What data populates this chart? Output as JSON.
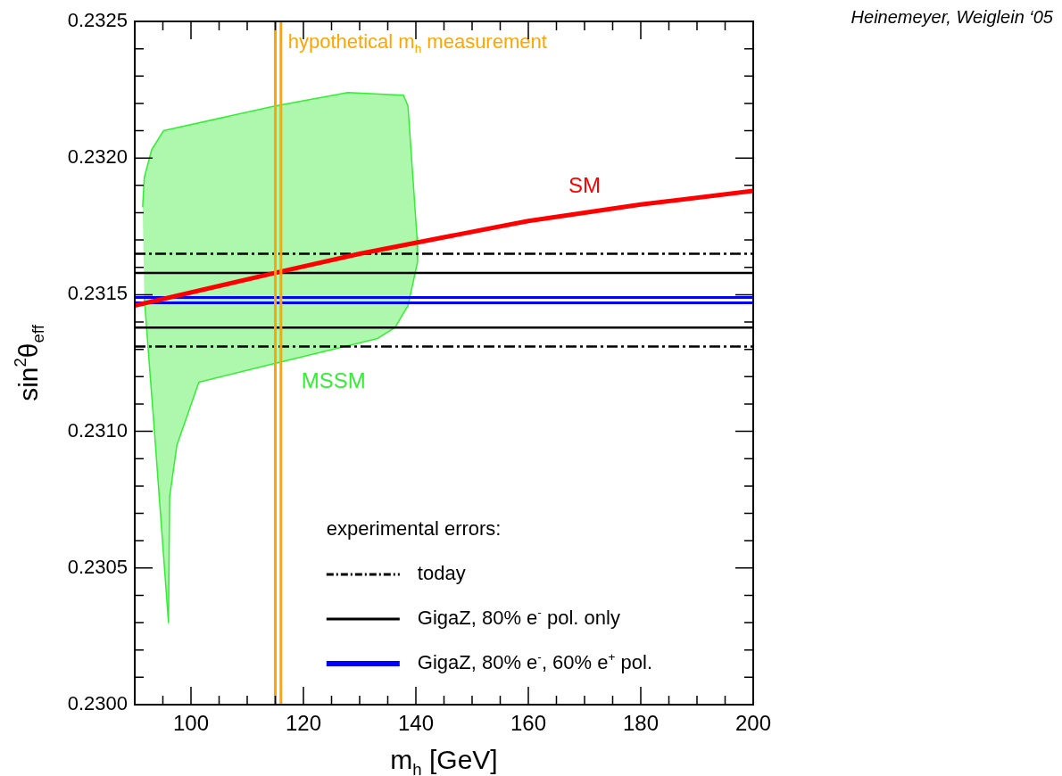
{
  "chart_data": {
    "type": "line",
    "xlabel": "m$_{h}$ [GeV]",
    "ylabel": "sin$^{2}$θ$_{eff}$",
    "xlim": [
      90,
      200
    ],
    "ylim": [
      0.23,
      0.2325
    ],
    "xticks": [
      {
        "value": 95,
        "label": null
      },
      100,
      {
        "value": 105,
        "label": null
      },
      {
        "value": 110,
        "label": null
      },
      {
        "value": 115,
        "label": null
      },
      120,
      {
        "value": 125,
        "label": null
      },
      {
        "value": 130,
        "label": null
      },
      {
        "value": 135,
        "label": null
      },
      140,
      {
        "value": 145,
        "label": null
      },
      {
        "value": 150,
        "label": null
      },
      {
        "value": 155,
        "label": null
      },
      160,
      {
        "value": 165,
        "label": null
      },
      {
        "value": 170,
        "label": null
      },
      {
        "value": 175,
        "label": null
      },
      180,
      {
        "value": 185,
        "label": null
      },
      {
        "value": 190,
        "label": null
      },
      {
        "value": 195,
        "label": null
      },
      200
    ],
    "yticks": [
      {
        "value": 0.23,
        "label": "0.2300"
      },
      {
        "value": 0.2301,
        "label": null
      },
      {
        "value": 0.2302,
        "label": null
      },
      {
        "value": 0.2303,
        "label": null
      },
      {
        "value": 0.2304,
        "label": null
      },
      {
        "value": 0.2305,
        "label": "0.2305"
      },
      {
        "value": 0.2306,
        "label": null
      },
      {
        "value": 0.2307,
        "label": null
      },
      {
        "value": 0.2308,
        "label": null
      },
      {
        "value": 0.2309,
        "label": null
      },
      {
        "value": 0.231,
        "label": "0.2310"
      },
      {
        "value": 0.2311,
        "label": null
      },
      {
        "value": 0.2312,
        "label": null
      },
      {
        "value": 0.2313,
        "label": null
      },
      {
        "value": 0.2314,
        "label": null
      },
      {
        "value": 0.2315,
        "label": "0.2315"
      },
      {
        "value": 0.2316,
        "label": null
      },
      {
        "value": 0.2317,
        "label": null
      },
      {
        "value": 0.2318,
        "label": null
      },
      {
        "value": 0.2319,
        "label": null
      },
      {
        "value": 0.232,
        "label": "0.2320"
      },
      {
        "value": 0.2321,
        "label": null
      },
      {
        "value": 0.2322,
        "label": null
      },
      {
        "value": 0.2323,
        "label": null
      },
      {
        "value": 0.2324,
        "label": null
      },
      {
        "value": 0.2325,
        "label": "0.2325"
      }
    ],
    "grid": false,
    "legend": "bottom right",
    "legend_title": "experimental errors:",
    "marker": "none",
    "series": [
      {
        "type": "area",
        "name": "MSSM",
        "color": "#33ee33",
        "x": [
          91.4,
          91.7,
          93.0,
          95.1,
          114.8,
          127.9,
          137.8,
          138.6,
          140.2,
          140.3,
          138.6,
          136.3,
          133.2,
          115.2,
          101.4,
          97.5,
          96.2,
          96.0,
          93.5,
          92.5,
          91.7
        ],
        "values": [
          0.23182,
          0.23193,
          0.23203,
          0.2321,
          0.23219,
          0.23224,
          0.23223,
          0.23219,
          0.23171,
          0.23162,
          0.23146,
          0.23138,
          0.23134,
          0.23125,
          0.23118,
          0.23095,
          0.23076,
          0.2303,
          0.231,
          0.23127,
          0.23149
        ]
      },
      {
        "type": "line",
        "name": "today",
        "color": "#000000",
        "line_style": "dashed",
        "x": [
          90,
          200
        ],
        "values": [
          0.23165,
          0.23165
        ]
      },
      {
        "type": "line",
        "color": "#000000",
        "line_style": "dashed",
        "x": [
          90,
          200
        ],
        "values": [
          0.23131,
          0.23131
        ]
      },
      {
        "type": "line",
        "name": "GigaZ, 80% e$^{-}$ pol. only",
        "color": "#000000",
        "line_style": "solid",
        "x": [
          90,
          200
        ],
        "values": [
          0.23158,
          0.23158
        ]
      },
      {
        "type": "line",
        "color": "#000000",
        "line_style": "solid",
        "x": [
          90,
          200
        ],
        "values": [
          0.23138,
          0.23138
        ]
      },
      {
        "type": "line",
        "name": "GigaZ, 80% e$^{-}$, 60% e$^{+}$ pol.",
        "color": "#0000ff",
        "line_style": "solid",
        "x": [
          90,
          200
        ],
        "values": [
          0.23149,
          0.23149
        ]
      },
      {
        "type": "line",
        "color": "#0000ff",
        "line_style": "solid",
        "x": [
          90,
          200
        ],
        "values": [
          0.23147,
          0.23147
        ]
      },
      {
        "name": "SM",
        "color": "#ff0000",
        "x": [
          90,
          115,
          130,
          145,
          160,
          180,
          200
        ],
        "values": [
          0.23146,
          0.23158,
          0.23165,
          0.23171,
          0.23177,
          0.23183,
          0.23188
        ]
      }
    ],
    "ref_lines": [
      {
        "axis": "x",
        "value": 115,
        "color": "#ffa500"
      },
      {
        "axis": "x",
        "value": 116,
        "color": "#ffa500",
        "label": "hypothetical m$_{h}$ measurement"
      }
    ],
    "annotations": [
      "Heinemeyer, Weiglein ‘05"
    ]
  }
}
